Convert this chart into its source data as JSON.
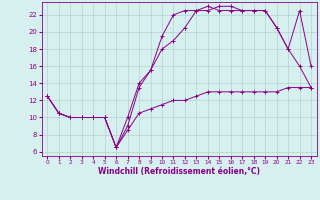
{
  "xlabel": "Windchill (Refroidissement éolien,°C)",
  "bg_color": "#d6f0f0",
  "grid_color": "#b0c8c8",
  "line_color": "#880088",
  "xlim": [
    -0.5,
    23.5
  ],
  "ylim": [
    5.5,
    23.5
  ],
  "xticks": [
    0,
    1,
    2,
    3,
    4,
    5,
    6,
    7,
    8,
    9,
    10,
    11,
    12,
    13,
    14,
    15,
    16,
    17,
    18,
    19,
    20,
    21,
    22,
    23
  ],
  "yticks": [
    6,
    8,
    10,
    12,
    14,
    16,
    18,
    20,
    22
  ],
  "line1_x": [
    0,
    1,
    2,
    3,
    4,
    5,
    6,
    7,
    8,
    9,
    10,
    11,
    12,
    13,
    14,
    15,
    16,
    17,
    18,
    19,
    20,
    21,
    22,
    23
  ],
  "line1_y": [
    12.5,
    10.5,
    10.0,
    10.0,
    10.0,
    10.0,
    6.5,
    9.0,
    13.5,
    15.5,
    19.5,
    22.0,
    22.5,
    22.5,
    22.5,
    23.0,
    23.0,
    22.5,
    22.5,
    22.5,
    20.5,
    18.0,
    22.5,
    16.0
  ],
  "line2_x": [
    0,
    1,
    2,
    3,
    4,
    5,
    6,
    7,
    8,
    9,
    10,
    11,
    12,
    13,
    14,
    15,
    16,
    17,
    18,
    19,
    20,
    21,
    22,
    23
  ],
  "line2_y": [
    12.5,
    10.5,
    10.0,
    10.0,
    10.0,
    10.0,
    6.5,
    8.5,
    10.5,
    11.0,
    11.5,
    12.0,
    12.0,
    12.5,
    13.0,
    13.0,
    13.0,
    13.0,
    13.0,
    13.0,
    13.0,
    13.5,
    13.5,
    13.5
  ],
  "line3_x": [
    0,
    1,
    2,
    3,
    4,
    5,
    6,
    7,
    8,
    9,
    10,
    11,
    12,
    13,
    14,
    15,
    16,
    17,
    18,
    19,
    20,
    21,
    22,
    23
  ],
  "line3_y": [
    12.5,
    10.5,
    10.0,
    10.0,
    10.0,
    10.0,
    6.5,
    10.0,
    14.0,
    15.5,
    18.0,
    19.0,
    20.5,
    22.5,
    23.0,
    22.5,
    22.5,
    22.5,
    22.5,
    22.5,
    20.5,
    18.0,
    16.0,
    13.5
  ]
}
